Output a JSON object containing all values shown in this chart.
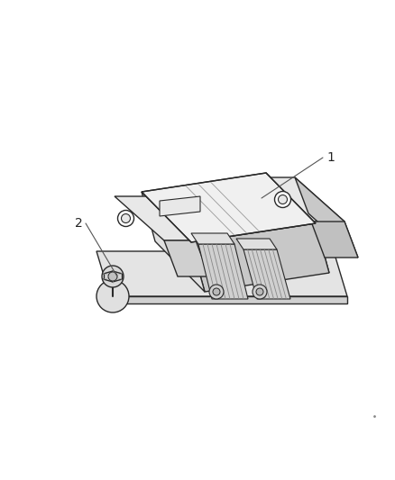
{
  "background_color": "#ffffff",
  "line_color": "#2a2a2a",
  "line_width": 1.0,
  "fig_width": 4.39,
  "fig_height": 5.33,
  "label1": "1",
  "label2": "2",
  "dot_color": "#888888"
}
